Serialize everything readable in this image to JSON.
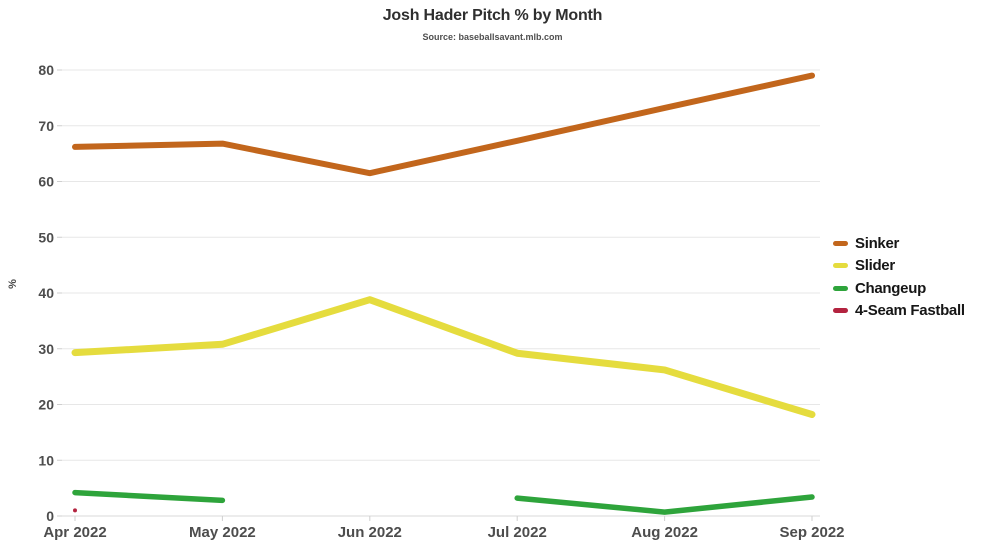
{
  "chart_data": {
    "type": "line",
    "title": "Josh Hader Pitch % by Month",
    "subtitle": "Source: baseballsavant.mlb.com",
    "ylabel": "%",
    "ylim": [
      0,
      80
    ],
    "yticks": [
      0,
      10,
      20,
      30,
      40,
      50,
      60,
      70,
      80
    ],
    "x_categories": [
      "Apr 2022",
      "May 2022",
      "Jun 2022",
      "Jul 2022",
      "Aug 2022",
      "Sep 2022"
    ],
    "grid": true,
    "legend_position": "right",
    "series": [
      {
        "name": "Sinker",
        "color": "#C2661C",
        "values": [
          66.2,
          66.8,
          61.5,
          67.3,
          73.2,
          79.0
        ]
      },
      {
        "name": "Slider",
        "color": "#E5DC3E",
        "values": [
          29.3,
          30.8,
          38.8,
          29.2,
          26.2,
          18.2
        ]
      },
      {
        "name": "Changeup",
        "color": "#2EA43B",
        "values": [
          4.2,
          2.8,
          null,
          3.2,
          0.7,
          3.4
        ]
      },
      {
        "name": "4-Seam Fastball",
        "color": "#B3233F",
        "values": [
          1.0,
          null,
          null,
          null,
          null,
          null
        ]
      }
    ]
  }
}
